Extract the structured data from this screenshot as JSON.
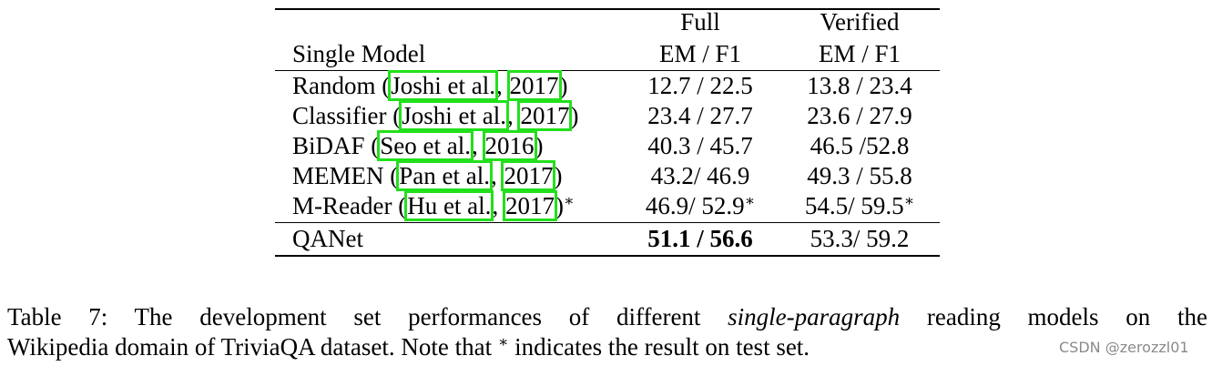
{
  "table": {
    "header": {
      "group_full": "Full",
      "group_verified": "Verified",
      "model_col": "Single Model",
      "full_metric": "EM / F1",
      "verified_metric": "EM / F1"
    },
    "rows": [
      {
        "model": [
          "Random (",
          "Joshi et al.",
          ", ",
          "2017",
          ")"
        ],
        "full": "12.7 / 22.5",
        "verified": "13.8 / 23.4"
      },
      {
        "model": [
          "Classifier (",
          "Joshi et al.",
          ", ",
          "2017",
          ")"
        ],
        "full": "23.4 / 27.7",
        "verified": "23.6 / 27.9"
      },
      {
        "model": [
          "BiDAF (",
          "Seo et al.",
          ", ",
          "2016",
          ")"
        ],
        "full": "40.3 / 45.7",
        "verified": "46.5 /52.8"
      },
      {
        "model": [
          "MEMEN (",
          "Pan et al.",
          ", ",
          "2017",
          ")"
        ],
        "full": "43.2/ 46.9",
        "verified": "49.3 / 55.8"
      },
      {
        "model": [
          "M-Reader (",
          "Hu et al.",
          ", ",
          "2017",
          ")"
        ],
        "model_note": "∗",
        "full": "46.9/ 52.9",
        "full_note": "∗",
        "verified": "54.5/ 59.5",
        "verified_note": "∗"
      },
      {
        "model": [
          "QANet"
        ],
        "full": "51.1 / 56.6",
        "full_bold": true,
        "verified": "53.3/ 59.2"
      }
    ]
  },
  "caption": {
    "line1": [
      {
        "text": "Table 7: The development set performances of different "
      },
      {
        "text": "single-paragraph",
        "italic": true
      },
      {
        "text": " reading models on the"
      }
    ],
    "line2": [
      {
        "text": "Wikipedia domain of TriviaQA dataset. Note that "
      },
      {
        "text": "∗",
        "sup": true
      },
      {
        "text": " indicates the result on test set."
      }
    ]
  },
  "watermark": "CSDN @zerozzl01"
}
